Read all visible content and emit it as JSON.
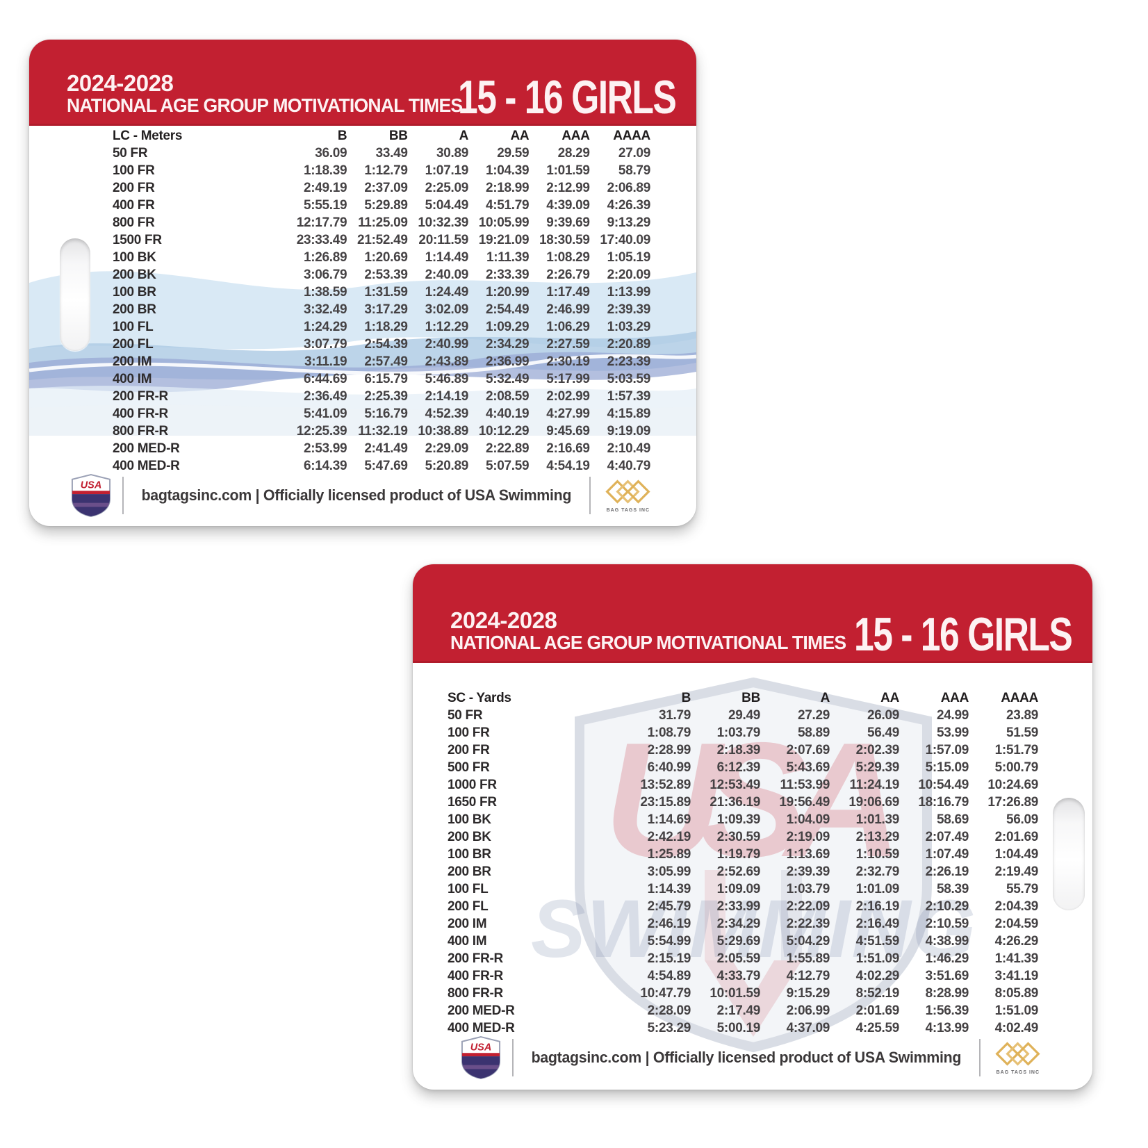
{
  "colors": {
    "header_red": "#c22031",
    "navy": "#2b2e63",
    "gold": "#dfb259",
    "wave_light_blue": "#d2e5f3",
    "wave_mid_blue": "#abc9e4",
    "wave_periwinkle": "#9aa9d4",
    "table_text": "#454244"
  },
  "card_lc": {
    "years": "2024-2028",
    "title": "NATIONAL AGE GROUP MOTIVATIONAL TIMES",
    "age_group": "15 - 16 GIRLS",
    "course_label": "LC - Meters",
    "columns": [
      "B",
      "BB",
      "A",
      "AA",
      "AAA",
      "AAAA"
    ],
    "rows": [
      {
        "event": "50 FR",
        "times": [
          "36.09",
          "33.49",
          "30.89",
          "29.59",
          "28.29",
          "27.09"
        ]
      },
      {
        "event": "100 FR",
        "times": [
          "1:18.39",
          "1:12.79",
          "1:07.19",
          "1:04.39",
          "1:01.59",
          "58.79"
        ]
      },
      {
        "event": "200 FR",
        "times": [
          "2:49.19",
          "2:37.09",
          "2:25.09",
          "2:18.99",
          "2:12.99",
          "2:06.89"
        ]
      },
      {
        "event": "400 FR",
        "times": [
          "5:55.19",
          "5:29.89",
          "5:04.49",
          "4:51.79",
          "4:39.09",
          "4:26.39"
        ]
      },
      {
        "event": "800 FR",
        "times": [
          "12:17.79",
          "11:25.09",
          "10:32.39",
          "10:05.99",
          "9:39.69",
          "9:13.29"
        ]
      },
      {
        "event": "1500 FR",
        "times": [
          "23:33.49",
          "21:52.49",
          "20:11.59",
          "19:21.09",
          "18:30.59",
          "17:40.09"
        ]
      },
      {
        "event": "100 BK",
        "times": [
          "1:26.89",
          "1:20.69",
          "1:14.49",
          "1:11.39",
          "1:08.29",
          "1:05.19"
        ]
      },
      {
        "event": "200 BK",
        "times": [
          "3:06.79",
          "2:53.39",
          "2:40.09",
          "2:33.39",
          "2:26.79",
          "2:20.09"
        ]
      },
      {
        "event": "100 BR",
        "times": [
          "1:38.59",
          "1:31.59",
          "1:24.49",
          "1:20.99",
          "1:17.49",
          "1:13.99"
        ]
      },
      {
        "event": "200 BR",
        "times": [
          "3:32.49",
          "3:17.29",
          "3:02.09",
          "2:54.49",
          "2:46.99",
          "2:39.39"
        ]
      },
      {
        "event": "100 FL",
        "times": [
          "1:24.29",
          "1:18.29",
          "1:12.29",
          "1:09.29",
          "1:06.29",
          "1:03.29"
        ]
      },
      {
        "event": "200 FL",
        "times": [
          "3:07.79",
          "2:54.39",
          "2:40.99",
          "2:34.29",
          "2:27.59",
          "2:20.89"
        ]
      },
      {
        "event": "200 IM",
        "times": [
          "3:11.19",
          "2:57.49",
          "2:43.89",
          "2:36.99",
          "2:30.19",
          "2:23.39"
        ]
      },
      {
        "event": "400 IM",
        "times": [
          "6:44.69",
          "6:15.79",
          "5:46.89",
          "5:32.49",
          "5:17.99",
          "5:03.59"
        ]
      },
      {
        "event": "200 FR-R",
        "times": [
          "2:36.49",
          "2:25.39",
          "2:14.19",
          "2:08.59",
          "2:02.99",
          "1:57.39"
        ]
      },
      {
        "event": "400 FR-R",
        "times": [
          "5:41.09",
          "5:16.79",
          "4:52.39",
          "4:40.19",
          "4:27.99",
          "4:15.89"
        ]
      },
      {
        "event": "800 FR-R",
        "times": [
          "12:25.39",
          "11:32.19",
          "10:38.89",
          "10:12.29",
          "9:45.69",
          "9:19.09"
        ]
      },
      {
        "event": "200 MED-R",
        "times": [
          "2:53.99",
          "2:41.49",
          "2:29.09",
          "2:22.89",
          "2:16.69",
          "2:10.49"
        ]
      },
      {
        "event": "400 MED-R",
        "times": [
          "6:14.39",
          "5:47.69",
          "5:20.89",
          "5:07.59",
          "4:54.19",
          "4:40.79"
        ]
      }
    ],
    "footer": {
      "site_text": "bagtagsinc.com | Officially licensed product of USA Swimming",
      "usa_logo_text": "USA",
      "bagtags_caption": "BAG TAGS INC"
    }
  },
  "card_sc": {
    "years": "2024-2028",
    "title": "NATIONAL AGE GROUP MOTIVATIONAL TIMES",
    "age_group": "15 - 16 GIRLS",
    "course_label": "SC - Yards",
    "columns": [
      "B",
      "BB",
      "A",
      "AA",
      "AAA",
      "AAAA"
    ],
    "rows": [
      {
        "event": "50 FR",
        "times": [
          "31.79",
          "29.49",
          "27.29",
          "26.09",
          "24.99",
          "23.89"
        ]
      },
      {
        "event": "100 FR",
        "times": [
          "1:08.79",
          "1:03.79",
          "58.89",
          "56.49",
          "53.99",
          "51.59"
        ]
      },
      {
        "event": "200 FR",
        "times": [
          "2:28.99",
          "2:18.39",
          "2:07.69",
          "2:02.39",
          "1:57.09",
          "1:51.79"
        ]
      },
      {
        "event": "500 FR",
        "times": [
          "6:40.99",
          "6:12.39",
          "5:43.69",
          "5:29.39",
          "5:15.09",
          "5:00.79"
        ]
      },
      {
        "event": "1000 FR",
        "times": [
          "13:52.89",
          "12:53.49",
          "11:53.99",
          "11:24.19",
          "10:54.49",
          "10:24.69"
        ]
      },
      {
        "event": "1650 FR",
        "times": [
          "23:15.89",
          "21:36.19",
          "19:56.49",
          "19:06.69",
          "18:16.79",
          "17:26.89"
        ]
      },
      {
        "event": "100 BK",
        "times": [
          "1:14.69",
          "1:09.39",
          "1:04.09",
          "1:01.39",
          "58.69",
          "56.09"
        ]
      },
      {
        "event": "200 BK",
        "times": [
          "2:42.19",
          "2:30.59",
          "2:19.09",
          "2:13.29",
          "2:07.49",
          "2:01.69"
        ]
      },
      {
        "event": "100 BR",
        "times": [
          "1:25.89",
          "1:19.79",
          "1:13.69",
          "1:10.59",
          "1:07.49",
          "1:04.49"
        ]
      },
      {
        "event": "200 BR",
        "times": [
          "3:05.99",
          "2:52.69",
          "2:39.39",
          "2:32.79",
          "2:26.19",
          "2:19.49"
        ]
      },
      {
        "event": "100 FL",
        "times": [
          "1:14.39",
          "1:09.09",
          "1:03.79",
          "1:01.09",
          "58.39",
          "55.79"
        ]
      },
      {
        "event": "200 FL",
        "times": [
          "2:45.79",
          "2:33.99",
          "2:22.09",
          "2:16.19",
          "2:10.29",
          "2:04.39"
        ]
      },
      {
        "event": "200 IM",
        "times": [
          "2:46.19",
          "2:34.29",
          "2:22.39",
          "2:16.49",
          "2:10.59",
          "2:04.59"
        ]
      },
      {
        "event": "400 IM",
        "times": [
          "5:54.99",
          "5:29.69",
          "5:04.29",
          "4:51.59",
          "4:38.99",
          "4:26.29"
        ]
      },
      {
        "event": "200 FR-R",
        "times": [
          "2:15.19",
          "2:05.59",
          "1:55.89",
          "1:51.09",
          "1:46.29",
          "1:41.39"
        ]
      },
      {
        "event": "400 FR-R",
        "times": [
          "4:54.89",
          "4:33.79",
          "4:12.79",
          "4:02.29",
          "3:51.69",
          "3:41.19"
        ]
      },
      {
        "event": "800 FR-R",
        "times": [
          "10:47.79",
          "10:01.59",
          "9:15.29",
          "8:52.19",
          "8:28.99",
          "8:05.89"
        ]
      },
      {
        "event": "200 MED-R",
        "times": [
          "2:28.09",
          "2:17.49",
          "2:06.99",
          "2:01.69",
          "1:56.39",
          "1:51.09"
        ]
      },
      {
        "event": "400 MED-R",
        "times": [
          "5:23.29",
          "5:00.19",
          "4:37.09",
          "4:25.59",
          "4:13.99",
          "4:02.49"
        ]
      }
    ],
    "watermark": {
      "line1": "USA",
      "line2": "SWIMMING"
    },
    "footer": {
      "site_text": "bagtagsinc.com | Officially licensed product of USA Swimming",
      "usa_logo_text": "USA",
      "bagtags_caption": "BAG TAGS INC"
    }
  }
}
